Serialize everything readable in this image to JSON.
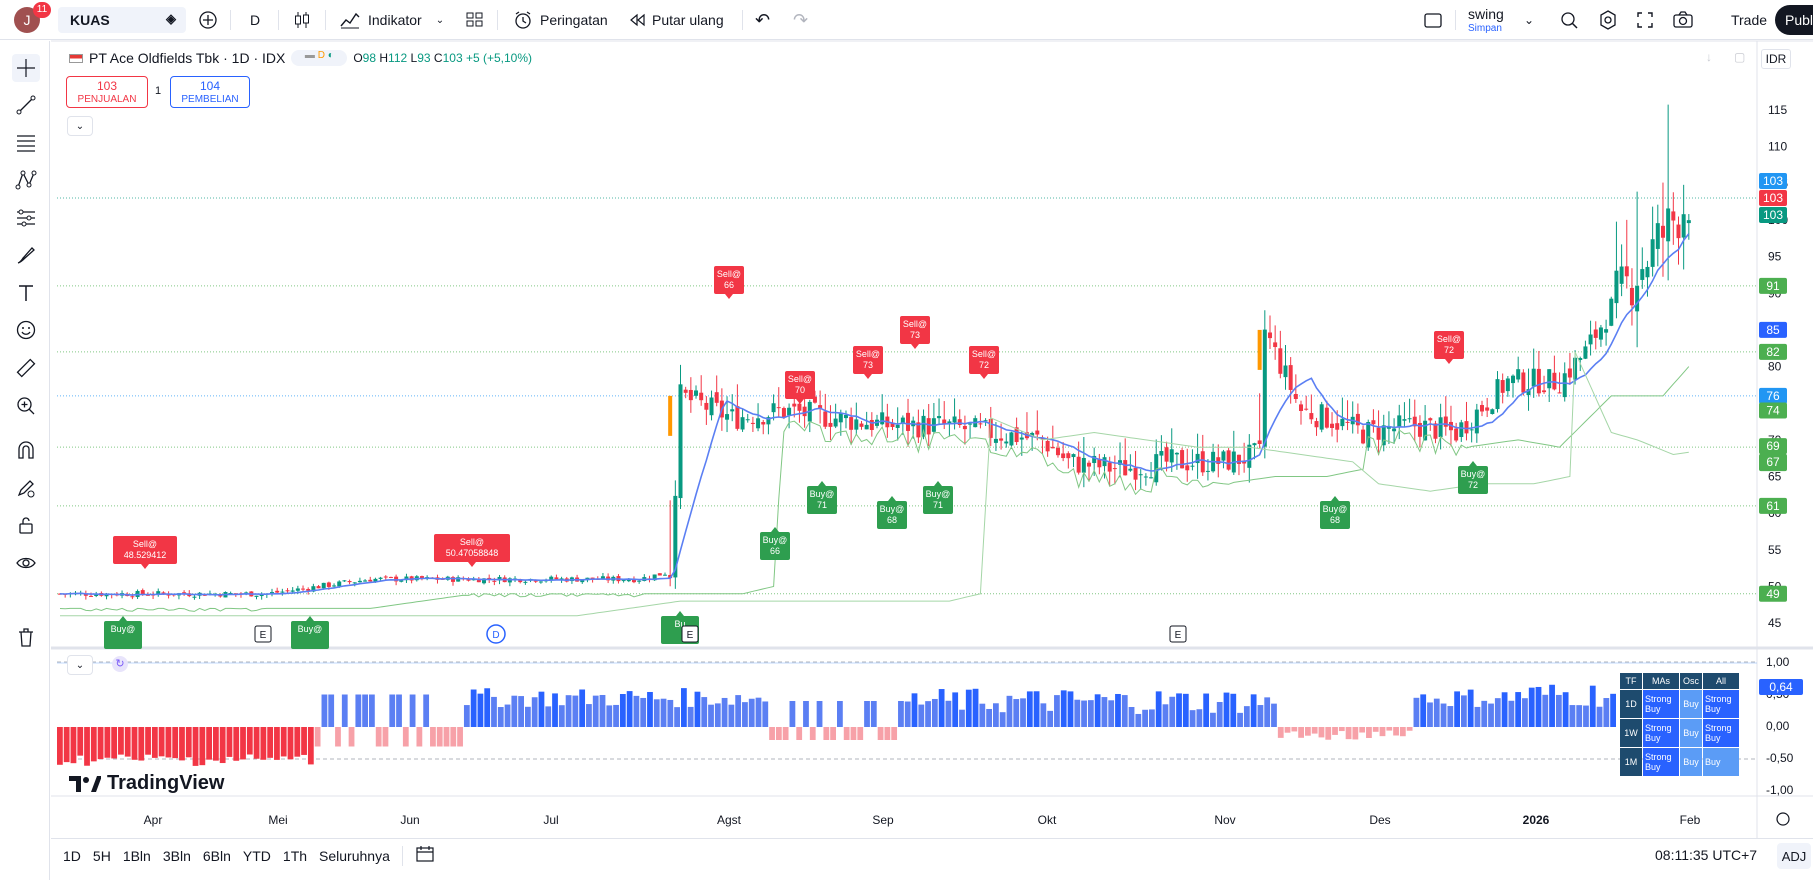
{
  "topbar": {
    "avatar_letter": "J",
    "notification_count": "11",
    "symbol": "KUAS",
    "interval": "D",
    "indicators_label": "Indikator",
    "alerts_label": "Peringatan",
    "replay_label": "Putar ulang",
    "layout_name": "swing",
    "layout_save": "Simpan",
    "trade_label": "Trade",
    "publish_label": "Publ"
  },
  "legend": {
    "title": "PT Ace Oldfields Tbk · 1D · IDX",
    "open_label": "O",
    "open": "98",
    "high_label": "H",
    "high": "112",
    "low_label": "L",
    "low": "93",
    "close_label": "C",
    "close": "103",
    "change": "+5 (+5,10%)"
  },
  "order_panel": {
    "sell_price": "103",
    "sell_label": "PENJUALAN",
    "quantity": "1",
    "buy_price": "104",
    "buy_label": "PEMBELIAN"
  },
  "currency": "IDR",
  "price_axis": {
    "ticks": [
      "115",
      "110",
      "105",
      "100",
      "95",
      "90",
      "85",
      "80",
      "75",
      "70",
      "65",
      "60",
      "55",
      "50",
      "45"
    ],
    "labels": [
      {
        "text": "103",
        "color": "#2196f3"
      },
      {
        "text": "103",
        "color": "#f23645"
      },
      {
        "text": "103",
        "color": "#089981"
      },
      {
        "text": "91",
        "color": "#4caf50"
      },
      {
        "text": "85",
        "color": "#2962ff"
      },
      {
        "text": "82",
        "color": "#4caf50"
      },
      {
        "text": "76",
        "color": "#2196f3"
      },
      {
        "text": "74",
        "color": "#4caf50"
      },
      {
        "text": "69",
        "color": "#4caf50"
      },
      {
        "text": "69",
        "color": "#4caf50"
      },
      {
        "text": "67",
        "color": "#4caf50"
      },
      {
        "text": "61",
        "color": "#4caf50"
      },
      {
        "text": "49",
        "color": "#4caf50"
      }
    ]
  },
  "osc_axis": {
    "ticks": [
      "1,00",
      "0,50",
      "0,00",
      "-0,50",
      "-1,00"
    ],
    "current": "0,64"
  },
  "time_axis": [
    "Apr",
    "Mei",
    "Jun",
    "Jul",
    "Agst",
    "Sep",
    "Okt",
    "Nov",
    "Des",
    "2026",
    "Feb"
  ],
  "signals": [
    {
      "type": "sell",
      "text": "Sell@ 48.529412"
    },
    {
      "type": "sell",
      "text": "Sell@ 50.47058848"
    },
    {
      "type": "sell",
      "text": "Sell@ 66"
    },
    {
      "type": "sell",
      "text": "Sell@ 70"
    },
    {
      "type": "sell",
      "text": "Sell@ 73"
    },
    {
      "type": "sell",
      "text": "Sell@ 73"
    },
    {
      "type": "sell",
      "text": "Sell@ 72"
    },
    {
      "type": "sell",
      "text": "Sell@ 72"
    },
    {
      "type": "buy",
      "text": "Buy@ 66"
    },
    {
      "type": "buy",
      "text": "Buy@ 71"
    },
    {
      "type": "buy",
      "text": "Buy@ 68"
    },
    {
      "type": "buy",
      "text": "Buy@ 71"
    },
    {
      "type": "buy",
      "text": "Buy@ 68"
    },
    {
      "type": "buy",
      "text": "Buy@ 72"
    },
    {
      "type": "buy",
      "text": "Buy@"
    },
    {
      "type": "buy",
      "text": "Buy@"
    },
    {
      "type": "buy",
      "text": "Bu"
    }
  ],
  "event_markers": [
    "E",
    "E",
    "D",
    "E",
    "E"
  ],
  "ratings": {
    "headers": [
      "TF",
      "MAs",
      "Osc",
      "All"
    ],
    "rows": [
      {
        "tf": "1D",
        "mas": "Strong Buy",
        "osc": "Buy",
        "all": "Strong Buy"
      },
      {
        "tf": "1W",
        "mas": "Strong Buy",
        "osc": "Buy",
        "all": "Strong Buy"
      },
      {
        "tf": "1M",
        "mas": "Strong Buy",
        "osc": "Buy",
        "all": "Buy"
      }
    ]
  },
  "brand": "TradingView",
  "bottombar": {
    "ranges": [
      "1D",
      "5H",
      "1Bln",
      "3Bln",
      "6Bln",
      "YTD",
      "1Th",
      "Seluruhnya"
    ],
    "clock": "08:11:35 UTC+7",
    "adj": "ADJ"
  },
  "colors": {
    "up": "#089981",
    "down": "#f23645",
    "ma_blue": "#5b7ff3",
    "buy_label": "#2e9e4f",
    "sell_label": "#f23645"
  }
}
